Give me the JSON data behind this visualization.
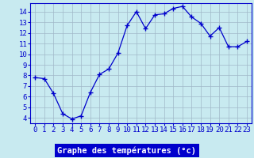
{
  "hours": [
    0,
    1,
    2,
    3,
    4,
    5,
    6,
    7,
    8,
    9,
    10,
    11,
    12,
    13,
    14,
    15,
    16,
    17,
    18,
    19,
    20,
    21,
    22,
    23
  ],
  "temps": [
    7.8,
    7.7,
    6.3,
    4.4,
    3.9,
    4.2,
    6.4,
    8.1,
    8.6,
    10.1,
    12.7,
    14.0,
    12.4,
    13.7,
    13.8,
    14.3,
    14.5,
    13.5,
    12.9,
    11.7,
    12.5,
    10.7,
    10.7,
    11.2
  ],
  "xlabel": "Graphe des températures (°c)",
  "ylim": [
    3.5,
    14.8
  ],
  "yticks": [
    4,
    5,
    6,
    7,
    8,
    9,
    10,
    11,
    12,
    13,
    14
  ],
  "xticks": [
    0,
    1,
    2,
    3,
    4,
    5,
    6,
    7,
    8,
    9,
    10,
    11,
    12,
    13,
    14,
    15,
    16,
    17,
    18,
    19,
    20,
    21,
    22,
    23
  ],
  "line_color": "#0000cc",
  "marker_color": "#0000cc",
  "bg_color": "#c8eaf0",
  "plot_bg_color": "#c8eaf0",
  "grid_color": "#a0b8c8",
  "xlabel_color": "#ffffff",
  "xlabel_bg": "#0000cc",
  "tick_label_color": "#0000cc",
  "axis_label_fontsize": 7.5,
  "tick_fontsize": 6.5
}
